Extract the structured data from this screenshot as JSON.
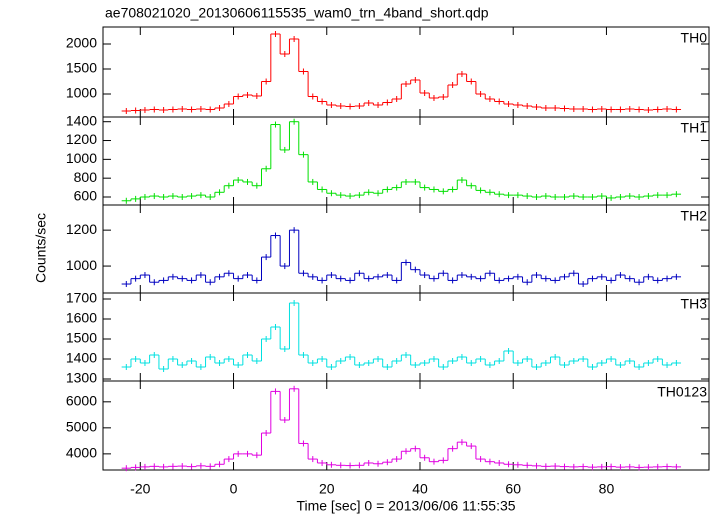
{
  "chart_data": [
    {
      "type": "step",
      "title": "ae708021020_20130606115535_wam0_trn_4band_short.qdp",
      "ylabel": "Counts/sec",
      "label": "TH0",
      "color": "#ff0000",
      "x": [
        -23,
        -21,
        -19,
        -17,
        -15,
        -13,
        -11,
        -9,
        -7,
        -5,
        -3,
        -1,
        1,
        3,
        5,
        7,
        9,
        11,
        13,
        15,
        17,
        19,
        21,
        23,
        25,
        27,
        29,
        31,
        33,
        35,
        37,
        39,
        41,
        43,
        45,
        47,
        49,
        51,
        53,
        55,
        57,
        59,
        61,
        63,
        65,
        67,
        69,
        71,
        73,
        75,
        77,
        79,
        81,
        83,
        85,
        87,
        89,
        91,
        93,
        95
      ],
      "values": [
        660,
        670,
        680,
        690,
        680,
        690,
        700,
        690,
        700,
        690,
        720,
        800,
        950,
        980,
        960,
        1250,
        2200,
        1800,
        2100,
        1450,
        950,
        850,
        780,
        760,
        750,
        760,
        820,
        780,
        830,
        900,
        1200,
        1280,
        1020,
        920,
        940,
        1180,
        1400,
        1250,
        1000,
        900,
        850,
        800,
        780,
        760,
        740,
        720,
        720,
        710,
        700,
        700,
        690,
        700,
        690,
        690,
        700,
        690,
        680,
        690,
        700,
        690
      ],
      "ylim": [
        540,
        2340
      ],
      "yticks": [
        1000,
        1500,
        2000
      ]
    },
    {
      "type": "step",
      "label": "TH1",
      "color": "#00e000",
      "x": [
        -23,
        -21,
        -19,
        -17,
        -15,
        -13,
        -11,
        -9,
        -7,
        -5,
        -3,
        -1,
        1,
        3,
        5,
        7,
        9,
        11,
        13,
        15,
        17,
        19,
        21,
        23,
        25,
        27,
        29,
        31,
        33,
        35,
        37,
        39,
        41,
        43,
        45,
        47,
        49,
        51,
        53,
        55,
        57,
        59,
        61,
        63,
        65,
        67,
        69,
        71,
        73,
        75,
        77,
        79,
        81,
        83,
        85,
        87,
        89,
        91,
        93,
        95
      ],
      "values": [
        560,
        580,
        600,
        610,
        600,
        610,
        600,
        610,
        620,
        600,
        650,
        720,
        780,
        760,
        720,
        900,
        1370,
        1100,
        1400,
        1050,
        760,
        680,
        640,
        620,
        610,
        620,
        650,
        640,
        680,
        700,
        760,
        760,
        700,
        680,
        660,
        680,
        780,
        720,
        670,
        650,
        630,
        620,
        620,
        610,
        600,
        610,
        600,
        600,
        610,
        600,
        600,
        610,
        590,
        600,
        610,
        600,
        610,
        620,
        620,
        630
      ],
      "ylim": [
        515,
        1450
      ],
      "yticks": [
        600,
        800,
        1000,
        1200,
        1400
      ]
    },
    {
      "type": "step",
      "label": "TH2",
      "color": "#0000c0",
      "x": [
        -23,
        -21,
        -19,
        -17,
        -15,
        -13,
        -11,
        -9,
        -7,
        -5,
        -3,
        -1,
        1,
        3,
        5,
        7,
        9,
        11,
        13,
        15,
        17,
        19,
        21,
        23,
        25,
        27,
        29,
        31,
        33,
        35,
        37,
        39,
        41,
        43,
        45,
        47,
        49,
        51,
        53,
        55,
        57,
        59,
        61,
        63,
        65,
        67,
        69,
        71,
        73,
        75,
        77,
        79,
        81,
        83,
        85,
        87,
        89,
        91,
        93,
        95
      ],
      "values": [
        900,
        930,
        950,
        910,
        920,
        940,
        930,
        920,
        950,
        910,
        940,
        960,
        930,
        950,
        920,
        1050,
        1170,
        1000,
        1200,
        960,
        940,
        920,
        950,
        930,
        920,
        960,
        930,
        940,
        950,
        920,
        1020,
        980,
        950,
        930,
        960,
        920,
        950,
        940,
        930,
        960,
        920,
        930,
        940,
        910,
        950,
        930,
        920,
        940,
        960,
        900,
        930,
        940,
        920,
        950,
        930,
        910,
        940,
        920,
        930,
        940
      ],
      "ylim": [
        850,
        1340
      ],
      "yticks": [
        1000,
        1200
      ]
    },
    {
      "type": "step",
      "label": "TH3",
      "color": "#00e0e0",
      "x": [
        -23,
        -21,
        -19,
        -17,
        -15,
        -13,
        -11,
        -9,
        -7,
        -5,
        -3,
        -1,
        1,
        3,
        5,
        7,
        9,
        11,
        13,
        15,
        17,
        19,
        21,
        23,
        25,
        27,
        29,
        31,
        33,
        35,
        37,
        39,
        41,
        43,
        45,
        47,
        49,
        51,
        53,
        55,
        57,
        59,
        61,
        63,
        65,
        67,
        69,
        71,
        73,
        75,
        77,
        79,
        81,
        83,
        85,
        87,
        89,
        91,
        93,
        95
      ],
      "values": [
        1360,
        1400,
        1380,
        1420,
        1350,
        1400,
        1370,
        1390,
        1360,
        1410,
        1380,
        1400,
        1370,
        1420,
        1390,
        1500,
        1560,
        1450,
        1680,
        1420,
        1380,
        1400,
        1360,
        1390,
        1410,
        1370,
        1380,
        1400,
        1360,
        1390,
        1420,
        1370,
        1380,
        1400,
        1360,
        1390,
        1410,
        1380,
        1400,
        1370,
        1390,
        1440,
        1380,
        1400,
        1360,
        1380,
        1410,
        1370,
        1390,
        1400,
        1360,
        1380,
        1400,
        1370,
        1390,
        1360,
        1380,
        1400,
        1370,
        1380
      ],
      "ylim": [
        1290,
        1730
      ],
      "yticks": [
        1300,
        1400,
        1500,
        1600,
        1700
      ]
    },
    {
      "type": "step",
      "label": "TH0123",
      "color": "#e000e0",
      "xlabel": "Time [sec] 0 = 2013/06/06 11:55:35",
      "x": [
        -23,
        -21,
        -19,
        -17,
        -15,
        -13,
        -11,
        -9,
        -7,
        -5,
        -3,
        -1,
        1,
        3,
        5,
        7,
        9,
        11,
        13,
        15,
        17,
        19,
        21,
        23,
        25,
        27,
        29,
        31,
        33,
        35,
        37,
        39,
        41,
        43,
        45,
        47,
        49,
        51,
        53,
        55,
        57,
        59,
        61,
        63,
        65,
        67,
        69,
        71,
        73,
        75,
        77,
        79,
        81,
        83,
        85,
        87,
        89,
        91,
        93,
        95
      ],
      "values": [
        3450,
        3480,
        3500,
        3520,
        3500,
        3520,
        3530,
        3510,
        3540,
        3520,
        3600,
        3800,
        4000,
        4000,
        3950,
        4800,
        6400,
        5300,
        6500,
        4400,
        3800,
        3650,
        3580,
        3560,
        3550,
        3560,
        3650,
        3620,
        3680,
        3800,
        4100,
        4200,
        3850,
        3700,
        3750,
        4200,
        4450,
        4300,
        3800,
        3700,
        3650,
        3600,
        3580,
        3560,
        3540,
        3520,
        3530,
        3510,
        3500,
        3510,
        3490,
        3500,
        3510,
        3490,
        3500,
        3480,
        3490,
        3500,
        3510,
        3500
      ],
      "ylim": [
        3380,
        6800
      ],
      "yticks": [
        4000,
        5000,
        6000
      ],
      "xlim": [
        -28,
        102
      ],
      "xticks": [
        -20,
        0,
        20,
        40,
        60,
        80
      ]
    }
  ]
}
